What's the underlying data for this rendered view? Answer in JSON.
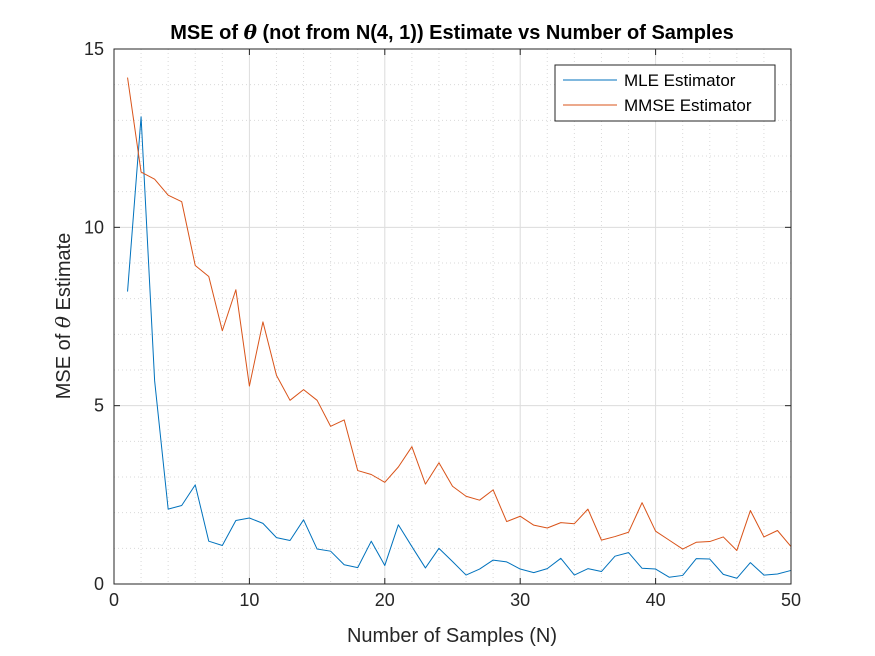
{
  "chart_data": {
    "type": "line",
    "title_before": "MSE of ",
    "title_symbol": "θ",
    "title_after": " (not from N(4, 1)) Estimate vs Number of Samples",
    "xlabel": "Number of Samples (N)",
    "ylabel_before": "MSE of ",
    "ylabel_symbol": "θ",
    "ylabel_after": " Estimate",
    "xlim": [
      0,
      50
    ],
    "ylim": [
      0,
      15
    ],
    "xticks": [
      0,
      10,
      20,
      30,
      40,
      50
    ],
    "yticks": [
      0,
      5,
      10,
      15
    ],
    "xtick_labels": [
      "0",
      "10",
      "20",
      "30",
      "40",
      "50"
    ],
    "ytick_labels": [
      "0",
      "5",
      "10",
      "15"
    ],
    "x_minor_step": 2,
    "y_minor_step": 1,
    "grid": true,
    "minor_grid": true,
    "legend_position": "top-right",
    "x": [
      1,
      2,
      3,
      4,
      5,
      6,
      7,
      8,
      9,
      10,
      11,
      12,
      13,
      14,
      15,
      16,
      17,
      18,
      19,
      20,
      21,
      22,
      23,
      24,
      25,
      26,
      27,
      28,
      29,
      30,
      31,
      32,
      33,
      34,
      35,
      36,
      37,
      38,
      39,
      40,
      41,
      42,
      43,
      44,
      45,
      46,
      47,
      48,
      49,
      50
    ],
    "series": [
      {
        "name": "MLE Estimator",
        "color": "#0072BD",
        "values": [
          8.2,
          13.1,
          5.7,
          2.1,
          2.2,
          2.78,
          1.2,
          1.08,
          1.78,
          1.85,
          1.7,
          1.3,
          1.22,
          1.8,
          0.98,
          0.92,
          0.54,
          0.46,
          1.2,
          0.52,
          1.66,
          1.05,
          0.45,
          1.0,
          0.63,
          0.25,
          0.42,
          0.67,
          0.62,
          0.42,
          0.32,
          0.43,
          0.72,
          0.25,
          0.43,
          0.35,
          0.78,
          0.88,
          0.44,
          0.42,
          0.19,
          0.24,
          0.71,
          0.7,
          0.27,
          0.16,
          0.6,
          0.25,
          0.28,
          0.38
        ]
      },
      {
        "name": "MMSE Estimator",
        "color": "#D95319",
        "values": [
          14.2,
          11.55,
          11.35,
          10.9,
          10.72,
          8.93,
          8.62,
          7.1,
          8.25,
          5.55,
          7.35,
          5.85,
          5.15,
          5.45,
          5.15,
          4.42,
          4.6,
          3.18,
          3.07,
          2.85,
          3.28,
          3.85,
          2.8,
          3.4,
          2.74,
          2.46,
          2.35,
          2.64,
          1.75,
          1.9,
          1.65,
          1.57,
          1.72,
          1.69,
          2.1,
          1.23,
          1.33,
          1.45,
          2.28,
          1.48,
          1.23,
          0.98,
          1.17,
          1.19,
          1.32,
          0.94,
          2.06,
          1.32,
          1.5,
          1.05
        ]
      }
    ]
  }
}
